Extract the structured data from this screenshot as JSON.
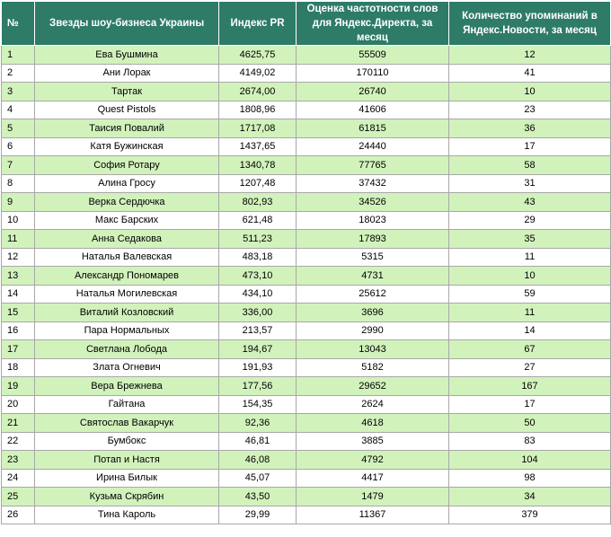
{
  "table": {
    "headers": {
      "num": "№",
      "name": "Звезды шоу-бизнеса Украины",
      "pr": "Индекс PR",
      "freq": "Оценка частотности слов для Яндекс.Директа, за месяц",
      "news": "Количество упоминаний в Яндекс.Новости, за месяц"
    },
    "rows": [
      {
        "num": "1",
        "name": "Ева Бушмина",
        "pr": "4625,75",
        "freq": "55509",
        "news": "12"
      },
      {
        "num": "2",
        "name": "Ани Лорак",
        "pr": "4149,02",
        "freq": "170110",
        "news": "41"
      },
      {
        "num": "3",
        "name": "Тартак",
        "pr": "2674,00",
        "freq": "26740",
        "news": "10"
      },
      {
        "num": "4",
        "name": "Quest Pistols",
        "pr": "1808,96",
        "freq": "41606",
        "news": "23"
      },
      {
        "num": "5",
        "name": "Таисия Повалий",
        "pr": "1717,08",
        "freq": "61815",
        "news": "36"
      },
      {
        "num": "6",
        "name": "Катя Бужинская",
        "pr": "1437,65",
        "freq": "24440",
        "news": "17"
      },
      {
        "num": "7",
        "name": "София Ротару",
        "pr": "1340,78",
        "freq": "77765",
        "news": "58"
      },
      {
        "num": "8",
        "name": "Алина Гросу",
        "pr": "1207,48",
        "freq": "37432",
        "news": "31"
      },
      {
        "num": "9",
        "name": "Верка Сердючка",
        "pr": "802,93",
        "freq": "34526",
        "news": "43"
      },
      {
        "num": "10",
        "name": "Макс Барских",
        "pr": "621,48",
        "freq": "18023",
        "news": "29"
      },
      {
        "num": "11",
        "name": "Анна Седакова",
        "pr": "511,23",
        "freq": "17893",
        "news": "35"
      },
      {
        "num": "12",
        "name": "Наталья Валевская",
        "pr": "483,18",
        "freq": "5315",
        "news": "11"
      },
      {
        "num": "13",
        "name": "Александр Пономарев",
        "pr": "473,10",
        "freq": "4731",
        "news": "10"
      },
      {
        "num": "14",
        "name": "Наталья Могилевская",
        "pr": "434,10",
        "freq": "25612",
        "news": "59"
      },
      {
        "num": "15",
        "name": "Виталий Козловский",
        "pr": "336,00",
        "freq": "3696",
        "news": "11"
      },
      {
        "num": "16",
        "name": "Пара Нормальных",
        "pr": "213,57",
        "freq": "2990",
        "news": "14"
      },
      {
        "num": "17",
        "name": "Светлана Лобода",
        "pr": "194,67",
        "freq": "13043",
        "news": "67"
      },
      {
        "num": "18",
        "name": "Злата Огневич",
        "pr": "191,93",
        "freq": "5182",
        "news": "27"
      },
      {
        "num": "19",
        "name": "Вера Брежнева",
        "pr": "177,56",
        "freq": "29652",
        "news": "167"
      },
      {
        "num": "20",
        "name": "Гайтана",
        "pr": "154,35",
        "freq": "2624",
        "news": "17"
      },
      {
        "num": "21",
        "name": "Святослав Вакарчук",
        "pr": "92,36",
        "freq": "4618",
        "news": "50"
      },
      {
        "num": "22",
        "name": "Бумбокс",
        "pr": "46,81",
        "freq": "3885",
        "news": "83"
      },
      {
        "num": "23",
        "name": "Потап и Настя",
        "pr": "46,08",
        "freq": "4792",
        "news": "104"
      },
      {
        "num": "24",
        "name": "Ирина Билык",
        "pr": "45,07",
        "freq": "4417",
        "news": "98"
      },
      {
        "num": "25",
        "name": "Кузьма Скрябин",
        "pr": "43,50",
        "freq": "1479",
        "news": "34"
      },
      {
        "num": "26",
        "name": "Тина Кароль",
        "pr": "29,99",
        "freq": "11367",
        "news": "379"
      }
    ]
  },
  "colors": {
    "header_bg": "#2e7b67",
    "header_text": "#ffffff",
    "row_odd_bg": "#d2f2bc",
    "row_even_bg": "#ffffff",
    "grid_line": "#a8a8a8"
  }
}
